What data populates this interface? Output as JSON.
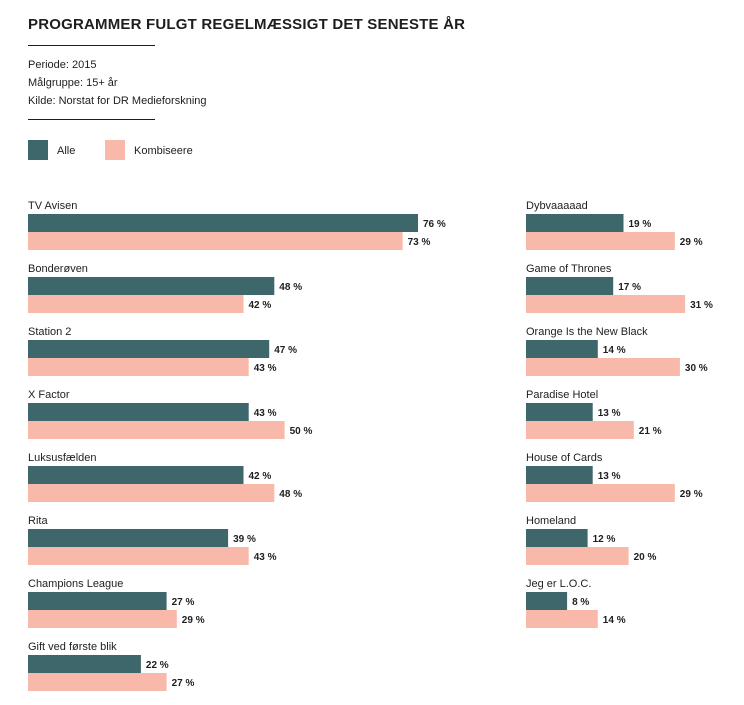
{
  "header": {
    "title": "PROGRAMMER FULGT REGELMÆSSIGT DET SENESTE ÅR",
    "period": "Periode: 2015",
    "target_group": "Målgruppe: 15+ år",
    "source": "Kilde: Norstat for DR Medieforskning"
  },
  "colors": {
    "alle": "#3d676b",
    "kombiseere": "#f8b8aa",
    "text": "#1e1e1e"
  },
  "chart_data": {
    "type": "bar",
    "orientation": "horizontal",
    "title": "PROGRAMMER FULGT REGELMÆSSIGT DET SENESTE ÅR",
    "unit": "%",
    "legend": [
      "Alle",
      "Kombiseere"
    ],
    "legend_position": "top-left",
    "grid": false,
    "xlim": [
      0,
      100
    ],
    "panels": [
      {
        "categories": [
          "TV Avisen",
          "Bonderøven",
          "Station 2",
          "X Factor",
          "Luksusfælden",
          "Rita",
          "Champions League",
          "Gift ved første blik"
        ],
        "series": [
          {
            "name": "Alle",
            "values": [
              76,
              48,
              47,
              43,
              42,
              39,
              27,
              22
            ],
            "labels": [
              "76 %",
              "48 %",
              "47 %",
              "43 %",
              "42 %",
              "39 %",
              "27 %",
              "22 %"
            ]
          },
          {
            "name": "Kombiseere",
            "values": [
              73,
              42,
              43,
              50,
              48,
              43,
              29,
              27
            ],
            "labels": [
              "73 %",
              "42 %",
              "43 %",
              "50 %",
              "48 %",
              "43 %",
              "29 %",
              "27 %"
            ]
          }
        ]
      },
      {
        "categories": [
          "Dybvaaaaad",
          "Game of Thrones",
          "Orange Is the New Black",
          "Paradise Hotel",
          "House of Cards",
          "Homeland",
          "Jeg er L.O.C."
        ],
        "series": [
          {
            "name": "Alle",
            "values": [
              19,
              17,
              14,
              13,
              13,
              12,
              8
            ],
            "labels": [
              "19 %",
              "17 %",
              "14 %",
              "13 %",
              "13 %",
              "12 %",
              "8 %"
            ]
          },
          {
            "name": "Kombiseere",
            "values": [
              29,
              31,
              30,
              21,
              29,
              20,
              14
            ],
            "labels": [
              "29 %",
              "31 %",
              "30 %",
              "21 %",
              "29 %",
              "20 %",
              "14 %"
            ]
          }
        ]
      }
    ]
  }
}
